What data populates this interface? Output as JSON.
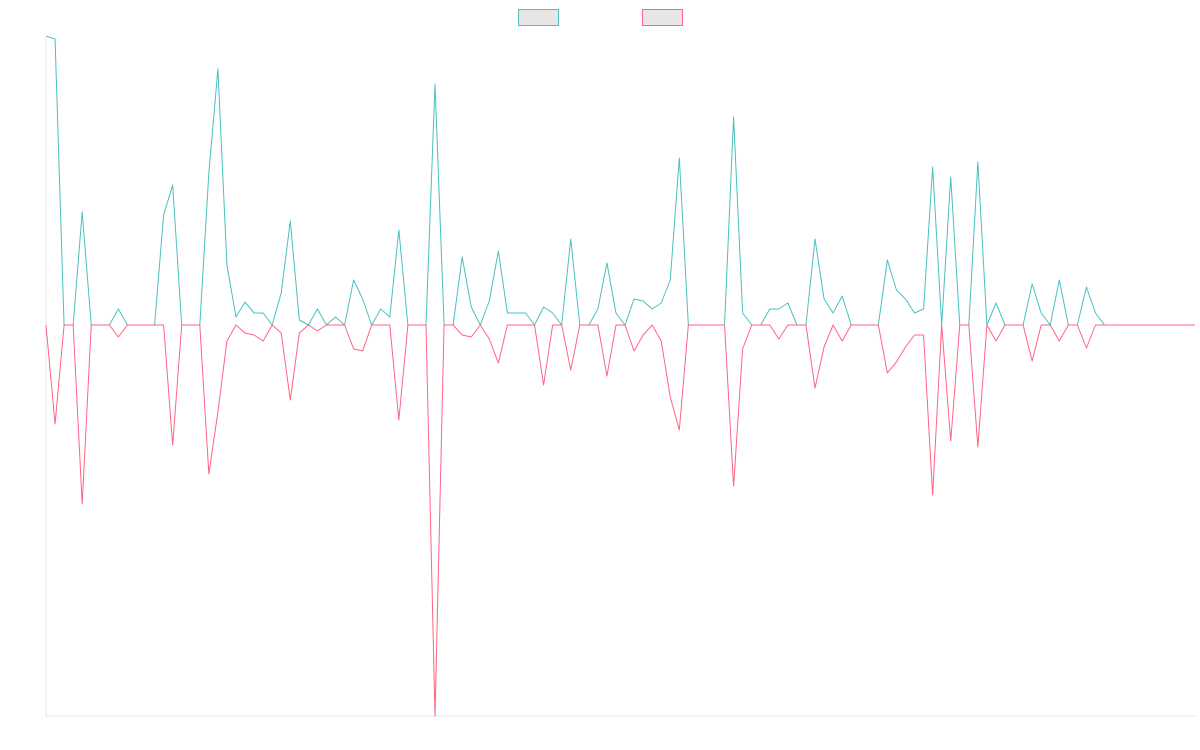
{
  "chart_data": {
    "type": "line",
    "categories": [
      null,
      null,
      null,
      null,
      null,
      null,
      null,
      null,
      null,
      null,
      null,
      null,
      null,
      null,
      null,
      null,
      null,
      null,
      null,
      null,
      null,
      null,
      null,
      null,
      null,
      null,
      null,
      null,
      null,
      null,
      null,
      null,
      null,
      null,
      null,
      null,
      null,
      null,
      null,
      null,
      null,
      null,
      null,
      null,
      null,
      null,
      null,
      null,
      null,
      null,
      null,
      null,
      null,
      null,
      null,
      null,
      null,
      null,
      null,
      null,
      null,
      null,
      null,
      null,
      null,
      null,
      null,
      null,
      null,
      null,
      null,
      null,
      null,
      null,
      null,
      null,
      null,
      null,
      null,
      null,
      null,
      null,
      null,
      null,
      null,
      null,
      null,
      null,
      null,
      null,
      null,
      null,
      null,
      null,
      null,
      null,
      null,
      null,
      null,
      null,
      null,
      null,
      null,
      null,
      null,
      null,
      null,
      null,
      null,
      null,
      null,
      null,
      null,
      null,
      null,
      null,
      null,
      null,
      null,
      null,
      null,
      null,
      null,
      null,
      null,
      null,
      null,
      null
    ],
    "series": [
      {
        "color": "#4bc0c0",
        "values": [
          289,
          286,
          0,
          0,
          113,
          0,
          0,
          0,
          16,
          0,
          0,
          0,
          0,
          110,
          140,
          0,
          0,
          0,
          152,
          256,
          60,
          8,
          23,
          12,
          12,
          0,
          32,
          104,
          5,
          0,
          16,
          0,
          8,
          0,
          45,
          26,
          0,
          16,
          8,
          95,
          0,
          0,
          0,
          241,
          0,
          0,
          68,
          18,
          0,
          24,
          74,
          12,
          12,
          12,
          0,
          18,
          12,
          0,
          86,
          0,
          0,
          16,
          62,
          12,
          0,
          26,
          24,
          16,
          22,
          45,
          167,
          0,
          0,
          0,
          0,
          0,
          208,
          12,
          0,
          0,
          16,
          16,
          22,
          0,
          0,
          86,
          26,
          12,
          29,
          0,
          0,
          0,
          0,
          65,
          35,
          26,
          12,
          16,
          158,
          0,
          148,
          0,
          0,
          163,
          0,
          22,
          0,
          0,
          0,
          41,
          12,
          0,
          45,
          0,
          0,
          38,
          12,
          0,
          0,
          0,
          0,
          0,
          0,
          0,
          0,
          0,
          0,
          0
        ]
      },
      {
        "color": "#ff6384",
        "values": [
          0,
          -99,
          0,
          0,
          -179,
          0,
          0,
          0,
          -12,
          0,
          0,
          0,
          0,
          0,
          -120,
          0,
          0,
          0,
          -149,
          -87,
          -16,
          0,
          -8,
          -10,
          -16,
          0,
          -8,
          -75,
          -8,
          0,
          -6,
          0,
          0,
          0,
          -24,
          -26,
          0,
          0,
          0,
          -95,
          0,
          0,
          0,
          -391,
          0,
          0,
          -10,
          -12,
          0,
          -14,
          -38,
          0,
          0,
          0,
          0,
          -60,
          0,
          0,
          -45,
          0,
          0,
          0,
          -51,
          0,
          0,
          -26,
          -10,
          0,
          -16,
          -72,
          -105,
          0,
          0,
          0,
          0,
          0,
          -161,
          -24,
          0,
          0,
          0,
          -14,
          0,
          0,
          0,
          -63,
          -22,
          0,
          -16,
          0,
          0,
          0,
          0,
          -48,
          -37,
          -22,
          -10,
          -10,
          -170,
          0,
          -116,
          0,
          0,
          -122,
          0,
          -16,
          0,
          0,
          0,
          -36,
          0,
          0,
          -16,
          0,
          0,
          -23,
          0,
          0,
          0,
          0,
          0,
          0,
          0,
          0,
          0,
          0,
          0,
          0
        ]
      }
    ],
    "ylim": [
      -391,
      289
    ]
  }
}
